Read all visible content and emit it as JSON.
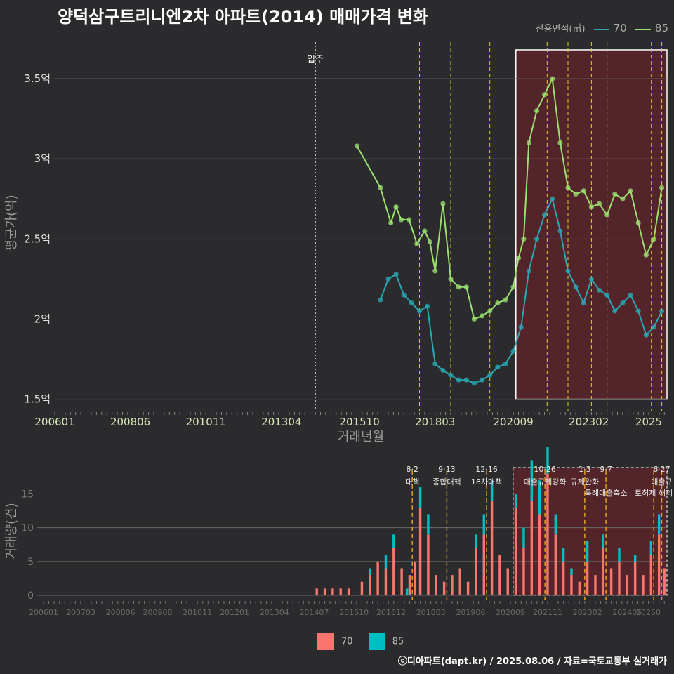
{
  "title": "양덕삼구트리니엔2차 아파트(2014) 매매가격 변화",
  "legend_top": {
    "label": "전용면적(㎡)",
    "items": [
      {
        "name": "70",
        "color": "#2aa7b2"
      },
      {
        "name": "85",
        "color": "#9be070"
      }
    ]
  },
  "legend_bottom": {
    "items": [
      {
        "name": "70",
        "color": "#f8766d"
      },
      {
        "name": "85",
        "color": "#00bfc4"
      }
    ]
  },
  "footer": "ⓒ디아파트(dapt.kr) / 2025.08.06 / 자료=국토교통부 실거래가",
  "chart_data": [
    {
      "type": "line",
      "title": "양덕삼구트리니엔2차 아파트(2014) 매매가격 변화",
      "xlabel": "거래년월",
      "ylabel": "평균가(억)",
      "x_ticks": [
        "200601",
        "200806",
        "201011",
        "201304",
        "201510",
        "201803",
        "202009",
        "202302",
        "2025"
      ],
      "y_ticks": [
        "1.5억",
        "2억",
        "2.5억",
        "3억",
        "3.5억"
      ],
      "ylim": [
        1.45,
        3.75
      ],
      "xlim": [
        "2006-01",
        "2025-08"
      ],
      "grid": true,
      "annotations": [
        {
          "text": "입주",
          "x": "2014-05"
        }
      ],
      "highlight_range": [
        "2020-10",
        "2025-08"
      ],
      "series": [
        {
          "name": "85",
          "color": "#9be070",
          "points": [
            [
              "2015-09",
              3.08
            ],
            [
              "2016-06",
              2.82
            ],
            [
              "2016-10",
              2.6
            ],
            [
              "2016-12",
              2.7
            ],
            [
              "2017-02",
              2.62
            ],
            [
              "2017-05",
              2.62
            ],
            [
              "2017-08",
              2.47
            ],
            [
              "2017-11",
              2.55
            ],
            [
              "2018-01",
              2.48
            ],
            [
              "2018-03",
              2.3
            ],
            [
              "2018-06",
              2.72
            ],
            [
              "2018-09",
              2.25
            ],
            [
              "2018-12",
              2.2
            ],
            [
              "2019-03",
              2.2
            ],
            [
              "2019-06",
              2.0
            ],
            [
              "2019-09",
              2.02
            ],
            [
              "2019-12",
              2.05
            ],
            [
              "2020-03",
              2.1
            ],
            [
              "2020-06",
              2.12
            ],
            [
              "2020-09",
              2.2
            ],
            [
              "2020-11",
              2.38
            ],
            [
              "2021-01",
              2.5
            ],
            [
              "2021-03",
              3.1
            ],
            [
              "2021-06",
              3.3
            ],
            [
              "2021-09",
              3.4
            ],
            [
              "2021-12",
              3.5
            ],
            [
              "2022-03",
              3.1
            ],
            [
              "2022-06",
              2.82
            ],
            [
              "2022-09",
              2.78
            ],
            [
              "2022-12",
              2.8
            ],
            [
              "2023-03",
              2.7
            ],
            [
              "2023-06",
              2.72
            ],
            [
              "2023-09",
              2.65
            ],
            [
              "2023-12",
              2.78
            ],
            [
              "2024-03",
              2.75
            ],
            [
              "2024-06",
              2.8
            ],
            [
              "2024-09",
              2.6
            ],
            [
              "2024-12",
              2.4
            ],
            [
              "2025-03",
              2.5
            ],
            [
              "2025-06",
              2.82
            ]
          ]
        },
        {
          "name": "70",
          "color": "#2aa7b2",
          "points": [
            [
              "2016-06",
              2.12
            ],
            [
              "2016-09",
              2.25
            ],
            [
              "2016-12",
              2.28
            ],
            [
              "2017-03",
              2.15
            ],
            [
              "2017-06",
              2.1
            ],
            [
              "2017-09",
              2.05
            ],
            [
              "2017-12",
              2.08
            ],
            [
              "2018-03",
              1.72
            ],
            [
              "2018-06",
              1.68
            ],
            [
              "2018-09",
              1.65
            ],
            [
              "2018-12",
              1.62
            ],
            [
              "2019-03",
              1.62
            ],
            [
              "2019-06",
              1.6
            ],
            [
              "2019-09",
              1.62
            ],
            [
              "2019-12",
              1.65
            ],
            [
              "2020-03",
              1.7
            ],
            [
              "2020-06",
              1.72
            ],
            [
              "2020-09",
              1.8
            ],
            [
              "2020-12",
              1.95
            ],
            [
              "2021-03",
              2.3
            ],
            [
              "2021-06",
              2.5
            ],
            [
              "2021-09",
              2.65
            ],
            [
              "2021-12",
              2.75
            ],
            [
              "2022-03",
              2.55
            ],
            [
              "2022-06",
              2.3
            ],
            [
              "2022-09",
              2.2
            ],
            [
              "2022-12",
              2.1
            ],
            [
              "2023-03",
              2.25
            ],
            [
              "2023-06",
              2.18
            ],
            [
              "2023-09",
              2.15
            ],
            [
              "2023-12",
              2.05
            ],
            [
              "2024-03",
              2.1
            ],
            [
              "2024-06",
              2.15
            ],
            [
              "2024-09",
              2.05
            ],
            [
              "2024-12",
              1.9
            ],
            [
              "2025-03",
              1.95
            ],
            [
              "2025-06",
              2.05
            ]
          ]
        }
      ]
    },
    {
      "type": "bar",
      "ylabel": "거래량(건)",
      "x_ticks": [
        "200601",
        "200703",
        "200806",
        "200908",
        "201011",
        "201201",
        "201304",
        "201407",
        "201510",
        "201612",
        "201803",
        "201906",
        "202009",
        "202111",
        "202302",
        "202405",
        "20250"
      ],
      "y_ticks": [
        "0",
        "5",
        "10",
        "15"
      ],
      "ylim": [
        0,
        19
      ],
      "xlim": [
        "2006-01",
        "2025-08"
      ],
      "stacked": true,
      "highlight_range": [
        "2020-10",
        "2025-08"
      ],
      "policy_events": [
        {
          "date": "2017-08",
          "label_date": "8·2",
          "label": "대책"
        },
        {
          "date": "2018-09",
          "label_date": "9·13",
          "label": "종합대책"
        },
        {
          "date": "2019-12",
          "label_date": "12·16",
          "label": "18차대책"
        },
        {
          "date": "2021-10",
          "label_date": "10·26",
          "label": "대출규제강화"
        },
        {
          "date": "2023-01",
          "label_date": "1·3",
          "label": "규제완화"
        },
        {
          "date": "2023-09",
          "label_date": "9·7",
          "label": "특례대출축소"
        },
        {
          "date": "2025-06",
          "label_date": "6·27",
          "label": "대출규"
        },
        {
          "date": "2025-03",
          "label_date": "",
          "label": "토허제 해제"
        }
      ],
      "series": [
        {
          "name": "70",
          "color": "#f8766d",
          "points": [
            [
              "2014-08",
              1
            ],
            [
              "2014-11",
              1
            ],
            [
              "2015-02",
              1
            ],
            [
              "2015-05",
              1
            ],
            [
              "2015-08",
              1
            ],
            [
              "2016-01",
              2
            ],
            [
              "2016-04",
              3
            ],
            [
              "2016-07",
              5
            ],
            [
              "2016-10",
              4
            ],
            [
              "2017-01",
              7
            ],
            [
              "2017-04",
              4
            ],
            [
              "2017-07",
              3
            ],
            [
              "2017-09",
              5
            ],
            [
              "2017-11",
              13
            ],
            [
              "2018-02",
              9
            ],
            [
              "2018-05",
              3
            ],
            [
              "2018-08",
              2
            ],
            [
              "2018-11",
              3
            ],
            [
              "2019-02",
              4
            ],
            [
              "2019-05",
              2
            ],
            [
              "2019-08",
              7
            ],
            [
              "2019-11",
              9
            ],
            [
              "2020-02",
              14
            ],
            [
              "2020-05",
              6
            ],
            [
              "2020-08",
              4
            ],
            [
              "2020-11",
              13
            ],
            [
              "2021-02",
              7
            ],
            [
              "2021-05",
              14
            ],
            [
              "2021-08",
              12
            ],
            [
              "2021-11",
              18
            ],
            [
              "2022-02",
              9
            ],
            [
              "2022-05",
              5
            ],
            [
              "2022-08",
              3
            ],
            [
              "2022-11",
              2
            ],
            [
              "2023-02",
              5
            ],
            [
              "2023-05",
              3
            ],
            [
              "2023-08",
              7
            ],
            [
              "2023-11",
              4
            ],
            [
              "2024-02",
              5
            ],
            [
              "2024-05",
              3
            ],
            [
              "2024-08",
              5
            ],
            [
              "2024-11",
              3
            ],
            [
              "2025-02",
              6
            ],
            [
              "2025-05",
              9
            ],
            [
              "2025-07",
              4
            ]
          ]
        },
        {
          "name": "85",
          "color": "#00bfc4",
          "points": [
            [
              "2016-04",
              1
            ],
            [
              "2016-10",
              2
            ],
            [
              "2017-01",
              2
            ],
            [
              "2017-06",
              1
            ],
            [
              "2017-11",
              3
            ],
            [
              "2018-02",
              3
            ],
            [
              "2019-08",
              2
            ],
            [
              "2019-11",
              3
            ],
            [
              "2020-02",
              3
            ],
            [
              "2020-11",
              2
            ],
            [
              "2021-02",
              3
            ],
            [
              "2021-05",
              6
            ],
            [
              "2021-08",
              5
            ],
            [
              "2021-11",
              4
            ],
            [
              "2022-02",
              3
            ],
            [
              "2022-05",
              2
            ],
            [
              "2022-08",
              1
            ],
            [
              "2023-02",
              3
            ],
            [
              "2023-08",
              2
            ],
            [
              "2024-02",
              2
            ],
            [
              "2024-08",
              1
            ],
            [
              "2025-02",
              2
            ],
            [
              "2025-05",
              3
            ]
          ]
        }
      ]
    }
  ]
}
